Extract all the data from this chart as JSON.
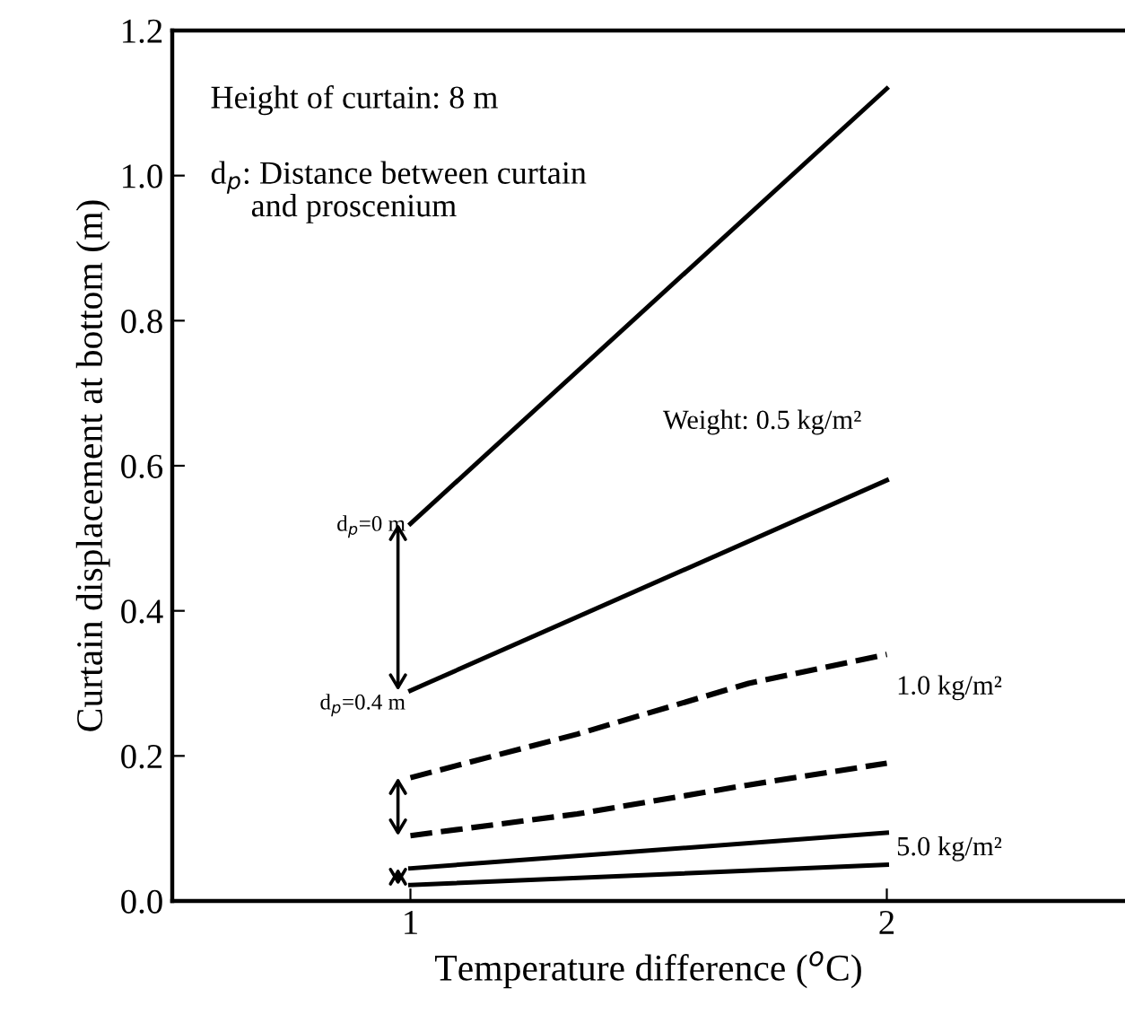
{
  "chart_data": {
    "type": "line",
    "xlabel": "Temperature difference ($^{o}$C)",
    "ylabel": "Curtain displacement at bottom (m)",
    "xlim": [
      0.5,
      2.5
    ],
    "xticks": [
      1,
      2
    ],
    "ylim": [
      0,
      1.2
    ],
    "yticks": [
      {
        "value": 0,
        "label": "0.0"
      },
      {
        "value": 0.2,
        "label": "0.2"
      },
      {
        "value": 0.4,
        "label": "0.4"
      },
      {
        "value": 0.6,
        "label": "0.6"
      },
      {
        "value": 0.8,
        "label": "0.8"
      },
      {
        "value": 1.0,
        "label": "1.0"
      },
      {
        "value": 1.2,
        "label": "1.2"
      }
    ],
    "grid": false,
    "legend": false,
    "marker": "none",
    "series": [
      {
        "color": "#000000",
        "line_style": "solid",
        "x": [
          1,
          2
        ],
        "values": [
          0.52,
          1.12
        ]
      },
      {
        "color": "#000000",
        "line_style": "solid",
        "x": [
          1,
          2
        ],
        "values": [
          0.29,
          0.58
        ]
      },
      {
        "color": "#000000",
        "line_style": "dashed",
        "x": [
          1,
          1.35,
          1.71,
          2
        ],
        "values": [
          0.17,
          0.23,
          0.3,
          0.34
        ]
      },
      {
        "color": "#000000",
        "line_style": "dashed",
        "x": [
          1,
          1.35,
          1.71,
          2
        ],
        "values": [
          0.09,
          0.12,
          0.16,
          0.19
        ]
      },
      {
        "color": "#000000",
        "line_style": "solid",
        "x": [
          1,
          2
        ],
        "values": [
          0.045,
          0.094
        ]
      },
      {
        "color": "#000000",
        "line_style": "solid",
        "x": [
          1,
          2
        ],
        "values": [
          0.022,
          0.05
        ]
      }
    ],
    "annotations": [
      "Height of curtain: 8 m",
      "d$_{p}$: Distance between curtain\n     and proscenium",
      "Weight: 0.5 kg/m²",
      "1.0 kg/m²",
      "5.0 kg/m²",
      "d$_{p}$=0 m",
      "d$_{p}$=0.4 m"
    ]
  }
}
